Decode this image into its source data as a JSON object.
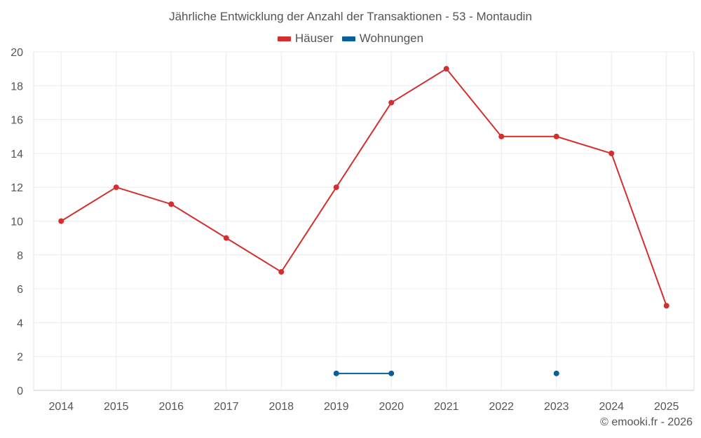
{
  "chart_data": {
    "type": "line",
    "title": "Jährliche Entwicklung der Anzahl der Transaktionen - 53 - Montaudin",
    "x": [
      "2014",
      "2015",
      "2016",
      "2017",
      "2018",
      "2019",
      "2020",
      "2021",
      "2022",
      "2023",
      "2024",
      "2025"
    ],
    "ylim": [
      0,
      20
    ],
    "yticks": [
      0,
      2,
      4,
      6,
      8,
      10,
      12,
      14,
      16,
      18,
      20
    ],
    "grid": true,
    "legend_position": "top-center",
    "series": [
      {
        "name": "Häuser",
        "color": "#d32f2f",
        "values": [
          10,
          12,
          11,
          9,
          7,
          12,
          17,
          19,
          15,
          15,
          14,
          5
        ]
      },
      {
        "name": "Wohnungen",
        "color": "#0a5f99",
        "values": [
          null,
          null,
          null,
          null,
          null,
          1,
          1,
          null,
          null,
          1,
          null,
          null
        ]
      }
    ]
  },
  "credit": "© emooki.fr - 2026"
}
